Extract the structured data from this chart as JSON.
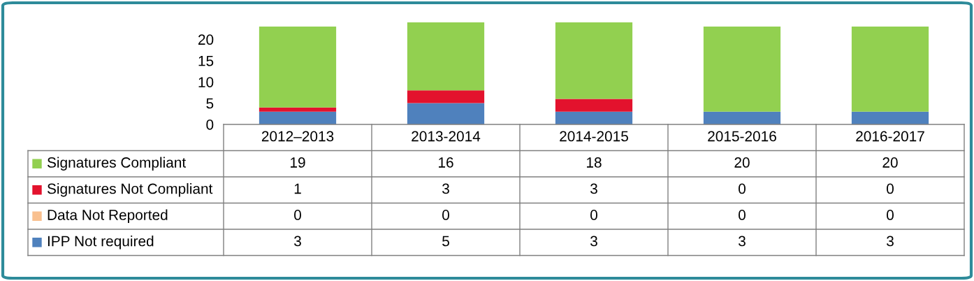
{
  "chart_data": {
    "type": "bar",
    "stacked": true,
    "categories": [
      "2012–2013",
      "2013-2014",
      "2014-2015",
      "2015-2016",
      "2016-2017"
    ],
    "series": [
      {
        "name": "IPP Not required",
        "color": "#4f81bd",
        "values": [
          3,
          5,
          3,
          3,
          3
        ]
      },
      {
        "name": "Data Not Reported",
        "color": "#f9c08f",
        "values": [
          0,
          0,
          0,
          0,
          0
        ]
      },
      {
        "name": "Signatures Not Compliant",
        "color": "#e3122d",
        "values": [
          1,
          3,
          3,
          0,
          0
        ]
      },
      {
        "name": "Signatures Compliant",
        "color": "#92d050",
        "values": [
          19,
          16,
          18,
          20,
          20
        ]
      }
    ],
    "ylim": [
      0,
      24
    ],
    "legend": "bottom left",
    "yticks": [
      0,
      5,
      10,
      15,
      20
    ],
    "grid": false,
    "data_labels": true
  }
}
